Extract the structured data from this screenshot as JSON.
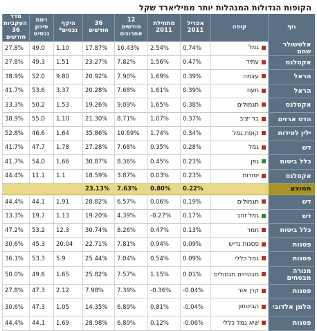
{
  "title": "הקופות הגדולות המנהלות יותר ממיליארד שקל",
  "colors": {
    "header_bg": "#5b7082",
    "average_bg": "#e9d886",
    "average_label_bg": "#a89325",
    "red_marker": "#b0302a",
    "green_marker": "#2f8a3a"
  },
  "headers": {
    "body": "גוף",
    "fund": "קופה",
    "april": "אפריל 2011",
    "ytd": "מתחילת 2011",
    "m12": "12 חודשים אחרונים",
    "m36": "36 חודשים",
    "assets": "היקף נכסים*",
    "risk": "רמת סיכון נכסים",
    "sharpe": "מדד העקביות 36 חודשים"
  },
  "rows_top": [
    {
      "body": "אלטשולר שחם",
      "fund": "גמל",
      "marker": "red",
      "april": "0.74%",
      "ytd": "2.54%",
      "m12": "10.43%",
      "m36": "17.87%",
      "assets": "1.10",
      "risk": "49.0",
      "sharpe": "27.8%"
    },
    {
      "body": "אקסלנס",
      "fund": "עתיד",
      "marker": "red",
      "april": "0.47%",
      "ytd": "1.56%",
      "m12": "7.82%",
      "m36": "23.27%",
      "assets": "1.51",
      "risk": "49.3",
      "sharpe": "27.8%"
    },
    {
      "body": "הראל",
      "fund": "עצמה",
      "marker": "red",
      "april": "0.39%",
      "ytd": "1.69%",
      "m12": "7.90%",
      "m36": "20.92%",
      "assets": "9.80",
      "risk": "52.0",
      "sharpe": "38.9%"
    },
    {
      "body": "הראל",
      "fund": "תעוז",
      "marker": "red",
      "april": "0.39%",
      "ytd": "1.61%",
      "m12": "7.68%",
      "m36": "20.28%",
      "assets": "3.37",
      "risk": "53.6",
      "sharpe": "41.7%"
    },
    {
      "body": "אקסלנס",
      "fund": "תגמולים",
      "marker": "red",
      "april": "0.38%",
      "ytd": "1.65%",
      "m12": "9.09%",
      "m36": "19.26%",
      "assets": "1.53",
      "risk": "50.2",
      "sharpe": "33.3%"
    },
    {
      "body": "הדס ארזים",
      "fund": "בר יציב",
      "marker": "red",
      "april": "0.37%",
      "ytd": "1.07%",
      "m12": "8.71%",
      "m36": "21.30%",
      "assets": "1.10",
      "risk": "55.0",
      "sharpe": "38.9%"
    },
    {
      "body": "ילין לפידות",
      "fund": "קופת גמל",
      "marker": "red",
      "april": "0.34%",
      "ytd": "1.74%",
      "m12": "10.69%",
      "m36": "35.86%",
      "assets": "1.64",
      "risk": "46.6",
      "sharpe": "52.8%"
    },
    {
      "body": "דש",
      "fund": "גמל",
      "marker": "red",
      "april": "0.28%",
      "ytd": "0.35%",
      "m12": "7.68%",
      "m36": "27.28%",
      "assets": "1.78",
      "risk": "47.7",
      "sharpe": "41.7%"
    },
    {
      "body": "כלל ביטוח",
      "fund": "גפן",
      "marker": "green",
      "april": "0.23%",
      "ytd": "0.45%",
      "m12": "8.36%",
      "m36": "30.87%",
      "assets": "1.66",
      "risk": "54.0",
      "sharpe": "41.7%"
    },
    {
      "body": "אקסלנס",
      "fund": "יסודות",
      "marker": "red",
      "april": "0.23%",
      "ytd": "0.03%",
      "m12": "3.87%",
      "m36": "18.59%",
      "assets": "1.1",
      "risk": "11.1",
      "sharpe": "44.4%"
    }
  ],
  "average": {
    "label": "ממוצע",
    "april": "0.22%",
    "ytd": "0.80%",
    "m12": "7.63%",
    "m36": "23.13%"
  },
  "rows_bottom": [
    {
      "body": "דש",
      "fund": "תגמולים",
      "marker": "red",
      "april": "0.19%",
      "ytd": "0.06%",
      "m12": "6.57%",
      "m36": "28.82%",
      "assets": "1.91",
      "risk": "44.1",
      "sharpe": "44.4%"
    },
    {
      "body": "דש",
      "fund": "גמל זהב",
      "marker": "green",
      "april": "0.17%",
      "ytd": "-0.27%",
      "m12": "4.39%",
      "m36": "19.20%",
      "assets": "1.13",
      "risk": "19.7",
      "sharpe": "33.3%"
    },
    {
      "body": "כלל ביטוח",
      "fund": "תמר",
      "marker": "red",
      "april": "0.13%",
      "ytd": "0.47%",
      "m12": "8.26%",
      "m36": "30.74%",
      "assets": "12.3",
      "risk": "53.2",
      "sharpe": "47.2%"
    },
    {
      "body": "פסגות",
      "fund": "פסגות גדיש",
      "marker": "red",
      "april": "0.09%",
      "ytd": "0.94%",
      "m12": "7.81%",
      "m36": "22.71%",
      "assets": "20.04",
      "risk": "45.3",
      "sharpe": "30.6%"
    },
    {
      "body": "פסגות",
      "fund": "גמל כללי",
      "marker": "red",
      "april": "0.09%",
      "ytd": "0.54%",
      "m12": "7.04%",
      "m36": "25.44%",
      "assets": "5.9",
      "risk": "53.3",
      "sharpe": "36.1%"
    },
    {
      "body": "מנורה מבטחים",
      "fund": "מבטחים תגמולים ופיצויים",
      "marker": "red",
      "april": "0.01%",
      "ytd": "1.15%",
      "m12": "7.57%",
      "m36": "25.82%",
      "assets": "1.65",
      "risk": "49.6",
      "sharpe": "50.0%",
      "tall": true
    },
    {
      "body": "פסגות",
      "fund": "קרן אור",
      "marker": "red",
      "april": "-0.04%",
      "ytd": "-0.36%",
      "m12": "7.39%",
      "m36": "7.98%",
      "assets": "2.12",
      "risk": "47.3",
      "sharpe": "27.8%"
    },
    {
      "body": "הלמן אלדובי",
      "fund": "הביטחון",
      "marker": "red",
      "april": "-0.04%",
      "ytd": "0.81%",
      "m12": "6.89%",
      "m36": "14.35%",
      "assets": "1.05",
      "risk": "47.3",
      "sharpe": "30.6%",
      "tall": true
    },
    {
      "body": "פסגות",
      "fund": "שיא גמל כללי",
      "marker": "red",
      "april": "-0.06%",
      "ytd": "0.12%",
      "m12": "6.89%",
      "m36": "28.98%",
      "assets": "1.69",
      "risk": "44.1",
      "sharpe": "44.4%"
    }
  ]
}
